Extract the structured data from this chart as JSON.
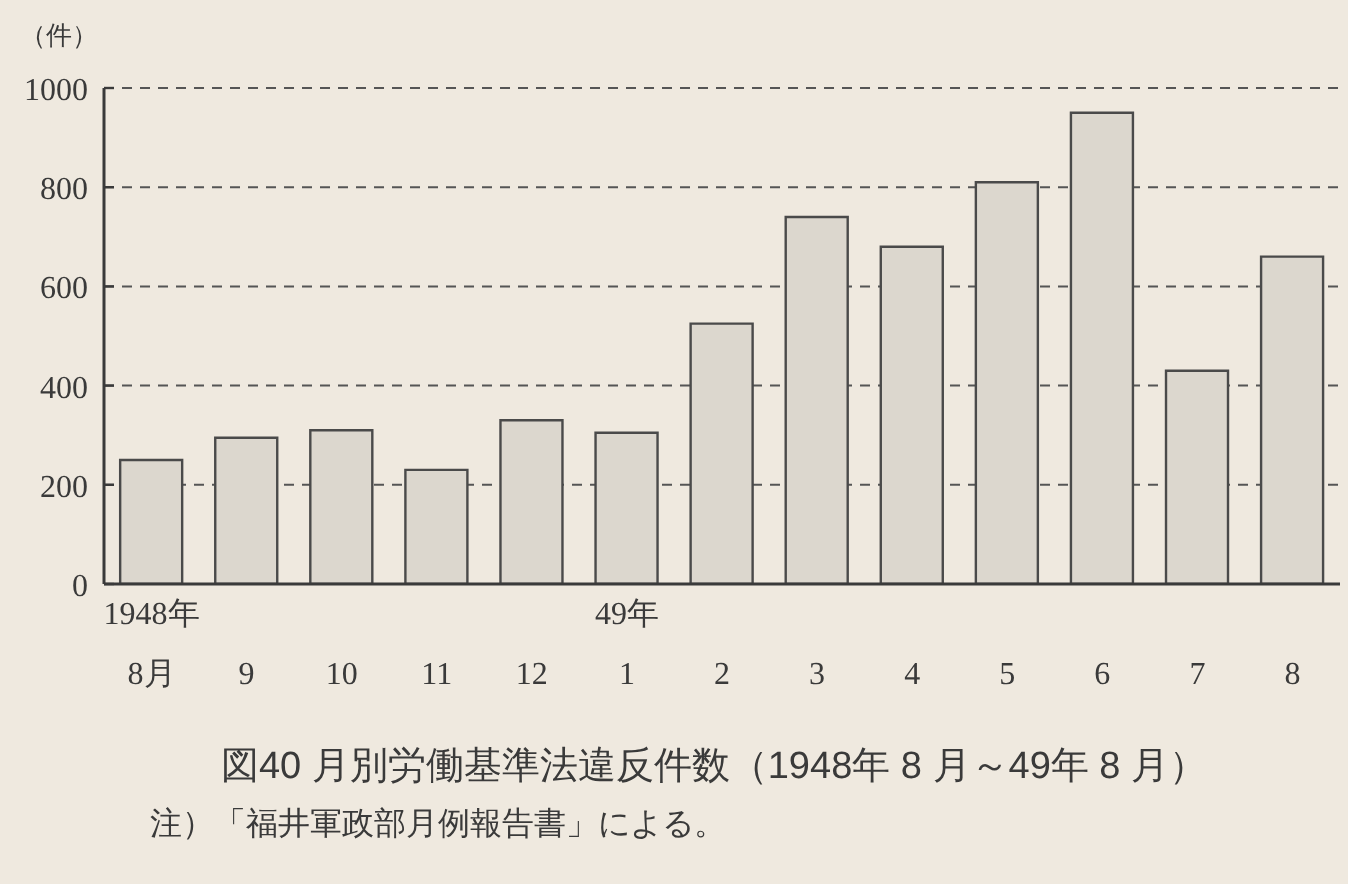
{
  "chart_data": {
    "type": "bar",
    "title": "図40 月別労働基準法違反件数（1948年 8 月～49年 8 月）",
    "ylabel": "（件）",
    "annotations": [
      "注）「福井軍政部月例報告書」による。"
    ],
    "categories": [
      "1948年\n8月",
      "9",
      "10",
      "11",
      "12",
      "49年\n1",
      "2",
      "3",
      "4",
      "5",
      "6",
      "7",
      "8"
    ],
    "values": [
      250,
      295,
      310,
      230,
      330,
      305,
      525,
      740,
      680,
      810,
      950,
      430,
      660
    ],
    "color": "#dcd7ce",
    "ylim": [
      0,
      1000
    ],
    "yticks": [
      0,
      200,
      400,
      600,
      800,
      1000
    ],
    "grid": "y"
  }
}
